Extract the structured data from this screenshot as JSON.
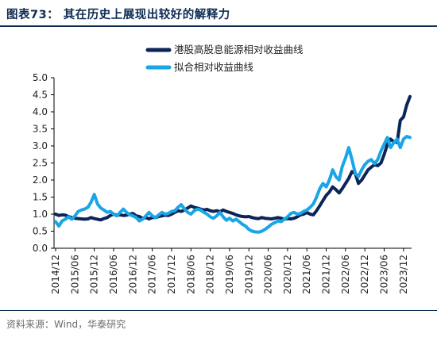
{
  "header": {
    "title": "图表73：  其在历史上展现出较好的解释力"
  },
  "footer": {
    "source": "资料来源：Wind，华泰研究"
  },
  "colors": {
    "series_dark": "#0d2458",
    "series_light": "#1aa6e6",
    "header": "#0e2b52"
  },
  "chart_data": {
    "type": "line",
    "title": "",
    "xlabel": "",
    "ylabel": "",
    "ylim": [
      0.0,
      5.0
    ],
    "yticks": [
      "0.0",
      "0.5",
      "1.0",
      "1.5",
      "2.0",
      "2.5",
      "3.0",
      "3.5",
      "4.0",
      "4.5",
      "5.0"
    ],
    "xticks": [
      "2014/12",
      "2015/06",
      "2015/12",
      "2016/06",
      "2016/12",
      "2017/06",
      "2017/12",
      "2018/06",
      "2018/12",
      "2019/06",
      "2019/12",
      "2020/06",
      "2020/12",
      "2021/06",
      "2021/12",
      "2022/06",
      "2022/12",
      "2023/06",
      "2023/12"
    ],
    "legend_position": "top-right",
    "grid": false,
    "series": [
      {
        "name": "港股高股息能源相对收益曲线",
        "points": [
          [
            "2014/12",
            1.0
          ],
          [
            "2015/01",
            0.96
          ],
          [
            "2015/02",
            0.98
          ],
          [
            "2015/03",
            0.97
          ],
          [
            "2015/04",
            0.93
          ],
          [
            "2015/05",
            0.9
          ],
          [
            "2015/06",
            0.88
          ],
          [
            "2015/07",
            0.87
          ],
          [
            "2015/08",
            0.86
          ],
          [
            "2015/09",
            0.85
          ],
          [
            "2015/10",
            0.86
          ],
          [
            "2015/11",
            0.9
          ],
          [
            "2015/12",
            0.87
          ],
          [
            "2016/01",
            0.85
          ],
          [
            "2016/02",
            0.83
          ],
          [
            "2016/03",
            0.87
          ],
          [
            "2016/04",
            0.9
          ],
          [
            "2016/05",
            0.96
          ],
          [
            "2016/06",
            1.0
          ],
          [
            "2016/07",
            0.97
          ],
          [
            "2016/08",
            0.98
          ],
          [
            "2016/09",
            0.96
          ],
          [
            "2016/10",
            0.97
          ],
          [
            "2016/11",
            1.0
          ],
          [
            "2016/12",
            1.02
          ],
          [
            "2017/01",
            0.95
          ],
          [
            "2017/02",
            0.93
          ],
          [
            "2017/03",
            0.88
          ],
          [
            "2017/04",
            0.9
          ],
          [
            "2017/05",
            0.86
          ],
          [
            "2017/06",
            0.9
          ],
          [
            "2017/07",
            0.9
          ],
          [
            "2017/08",
            0.93
          ],
          [
            "2017/09",
            0.95
          ],
          [
            "2017/10",
            0.97
          ],
          [
            "2017/11",
            0.96
          ],
          [
            "2017/12",
            1.0
          ],
          [
            "2018/01",
            1.05
          ],
          [
            "2018/02",
            1.1
          ],
          [
            "2018/03",
            1.08
          ],
          [
            "2018/04",
            1.12
          ],
          [
            "2018/05",
            1.18
          ],
          [
            "2018/06",
            1.24
          ],
          [
            "2018/07",
            1.2
          ],
          [
            "2018/08",
            1.18
          ],
          [
            "2018/09",
            1.15
          ],
          [
            "2018/10",
            1.12
          ],
          [
            "2018/11",
            1.14
          ],
          [
            "2018/12",
            1.1
          ],
          [
            "2019/01",
            1.08
          ],
          [
            "2019/02",
            1.1
          ],
          [
            "2019/03",
            1.07
          ],
          [
            "2019/04",
            1.12
          ],
          [
            "2019/05",
            1.08
          ],
          [
            "2019/06",
            1.05
          ],
          [
            "2019/07",
            1.02
          ],
          [
            "2019/08",
            0.98
          ],
          [
            "2019/09",
            0.95
          ],
          [
            "2019/10",
            0.93
          ],
          [
            "2019/11",
            0.92
          ],
          [
            "2019/12",
            0.93
          ],
          [
            "2020/01",
            0.9
          ],
          [
            "2020/02",
            0.88
          ],
          [
            "2020/03",
            0.87
          ],
          [
            "2020/04",
            0.9
          ],
          [
            "2020/05",
            0.88
          ],
          [
            "2020/06",
            0.87
          ],
          [
            "2020/07",
            0.86
          ],
          [
            "2020/08",
            0.88
          ],
          [
            "2020/09",
            0.9
          ],
          [
            "2020/10",
            0.88
          ],
          [
            "2020/11",
            0.85
          ],
          [
            "2020/12",
            0.87
          ],
          [
            "2021/01",
            0.86
          ],
          [
            "2021/02",
            0.88
          ],
          [
            "2021/03",
            0.92
          ],
          [
            "2021/04",
            0.98
          ],
          [
            "2021/05",
            1.0
          ],
          [
            "2021/06",
            1.05
          ],
          [
            "2021/07",
            1.0
          ],
          [
            "2021/08",
            0.98
          ],
          [
            "2021/09",
            1.1
          ],
          [
            "2021/10",
            1.25
          ],
          [
            "2021/11",
            1.4
          ],
          [
            "2021/12",
            1.55
          ],
          [
            "2022/01",
            1.65
          ],
          [
            "2022/02",
            1.8
          ],
          [
            "2022/03",
            1.72
          ],
          [
            "2022/04",
            1.62
          ],
          [
            "2022/05",
            1.75
          ],
          [
            "2022/06",
            1.9
          ],
          [
            "2022/07",
            2.05
          ],
          [
            "2022/08",
            2.25
          ],
          [
            "2022/09",
            2.2
          ],
          [
            "2022/10",
            1.9
          ],
          [
            "2022/11",
            2.0
          ],
          [
            "2022/12",
            2.15
          ],
          [
            "2023/01",
            2.3
          ],
          [
            "2023/02",
            2.38
          ],
          [
            "2023/03",
            2.45
          ],
          [
            "2023/04",
            2.42
          ],
          [
            "2023/05",
            2.5
          ],
          [
            "2023/06",
            2.75
          ],
          [
            "2023/07",
            3.05
          ],
          [
            "2023/08",
            3.2
          ],
          [
            "2023/09",
            3.12
          ],
          [
            "2023/10",
            3.1
          ],
          [
            "2023/11",
            3.75
          ],
          [
            "2023/12",
            3.85
          ],
          [
            "2024/01",
            4.2
          ],
          [
            "2024/02",
            4.45
          ]
        ]
      },
      {
        "name": "拟合相对收益曲线",
        "points": [
          [
            "2014/12",
            0.78
          ],
          [
            "2015/01",
            0.65
          ],
          [
            "2015/02",
            0.8
          ],
          [
            "2015/03",
            0.85
          ],
          [
            "2015/04",
            0.92
          ],
          [
            "2015/05",
            0.85
          ],
          [
            "2015/06",
            0.95
          ],
          [
            "2015/07",
            1.08
          ],
          [
            "2015/08",
            1.12
          ],
          [
            "2015/09",
            1.15
          ],
          [
            "2015/10",
            1.2
          ],
          [
            "2015/11",
            1.35
          ],
          [
            "2015/12",
            1.58
          ],
          [
            "2016/01",
            1.3
          ],
          [
            "2016/02",
            1.18
          ],
          [
            "2016/03",
            1.12
          ],
          [
            "2016/04",
            1.05
          ],
          [
            "2016/05",
            1.08
          ],
          [
            "2016/06",
            1.0
          ],
          [
            "2016/07",
            0.95
          ],
          [
            "2016/08",
            1.05
          ],
          [
            "2016/09",
            1.15
          ],
          [
            "2016/10",
            1.05
          ],
          [
            "2016/11",
            0.98
          ],
          [
            "2016/12",
            0.95
          ],
          [
            "2017/01",
            0.9
          ],
          [
            "2017/02",
            0.8
          ],
          [
            "2017/03",
            0.85
          ],
          [
            "2017/04",
            0.95
          ],
          [
            "2017/05",
            1.05
          ],
          [
            "2017/06",
            0.95
          ],
          [
            "2017/07",
            0.9
          ],
          [
            "2017/08",
            0.98
          ],
          [
            "2017/09",
            1.05
          ],
          [
            "2017/10",
            1.0
          ],
          [
            "2017/11",
            1.02
          ],
          [
            "2017/12",
            1.08
          ],
          [
            "2018/01",
            1.1
          ],
          [
            "2018/02",
            1.2
          ],
          [
            "2018/03",
            1.28
          ],
          [
            "2018/04",
            1.15
          ],
          [
            "2018/05",
            1.05
          ],
          [
            "2018/06",
            1.0
          ],
          [
            "2018/07",
            1.1
          ],
          [
            "2018/08",
            1.15
          ],
          [
            "2018/09",
            1.12
          ],
          [
            "2018/10",
            1.05
          ],
          [
            "2018/11",
            1.0
          ],
          [
            "2018/12",
            0.92
          ],
          [
            "2019/01",
            0.88
          ],
          [
            "2019/02",
            0.95
          ],
          [
            "2019/03",
            1.05
          ],
          [
            "2019/04",
            0.92
          ],
          [
            "2019/05",
            0.82
          ],
          [
            "2019/06",
            0.88
          ],
          [
            "2019/07",
            0.8
          ],
          [
            "2019/08",
            0.85
          ],
          [
            "2019/09",
            0.78
          ],
          [
            "2019/10",
            0.7
          ],
          [
            "2019/11",
            0.65
          ],
          [
            "2019/12",
            0.55
          ],
          [
            "2020/01",
            0.5
          ],
          [
            "2020/02",
            0.48
          ],
          [
            "2020/03",
            0.47
          ],
          [
            "2020/04",
            0.5
          ],
          [
            "2020/05",
            0.55
          ],
          [
            "2020/06",
            0.62
          ],
          [
            "2020/07",
            0.7
          ],
          [
            "2020/08",
            0.75
          ],
          [
            "2020/09",
            0.8
          ],
          [
            "2020/10",
            0.78
          ],
          [
            "2020/11",
            0.85
          ],
          [
            "2020/12",
            0.92
          ],
          [
            "2021/01",
            1.02
          ],
          [
            "2021/02",
            1.05
          ],
          [
            "2021/03",
            1.0
          ],
          [
            "2021/04",
            1.02
          ],
          [
            "2021/05",
            1.08
          ],
          [
            "2021/06",
            1.12
          ],
          [
            "2021/07",
            1.2
          ],
          [
            "2021/08",
            1.3
          ],
          [
            "2021/09",
            1.5
          ],
          [
            "2021/10",
            1.75
          ],
          [
            "2021/11",
            1.9
          ],
          [
            "2021/12",
            1.8
          ],
          [
            "2022/01",
            2.0
          ],
          [
            "2022/02",
            2.3
          ],
          [
            "2022/03",
            2.1
          ],
          [
            "2022/04",
            2.0
          ],
          [
            "2022/05",
            2.4
          ],
          [
            "2022/06",
            2.65
          ],
          [
            "2022/07",
            2.95
          ],
          [
            "2022/08",
            2.6
          ],
          [
            "2022/09",
            2.2
          ],
          [
            "2022/10",
            2.1
          ],
          [
            "2022/11",
            2.3
          ],
          [
            "2022/12",
            2.45
          ],
          [
            "2023/01",
            2.55
          ],
          [
            "2023/02",
            2.6
          ],
          [
            "2023/03",
            2.48
          ],
          [
            "2023/04",
            2.6
          ],
          [
            "2023/05",
            2.85
          ],
          [
            "2023/06",
            3.05
          ],
          [
            "2023/07",
            3.25
          ],
          [
            "2023/08",
            2.95
          ],
          [
            "2023/09",
            3.1
          ],
          [
            "2023/10",
            3.2
          ],
          [
            "2023/11",
            2.95
          ],
          [
            "2023/12",
            3.2
          ],
          [
            "2024/01",
            3.28
          ],
          [
            "2024/02",
            3.25
          ]
        ]
      }
    ]
  }
}
